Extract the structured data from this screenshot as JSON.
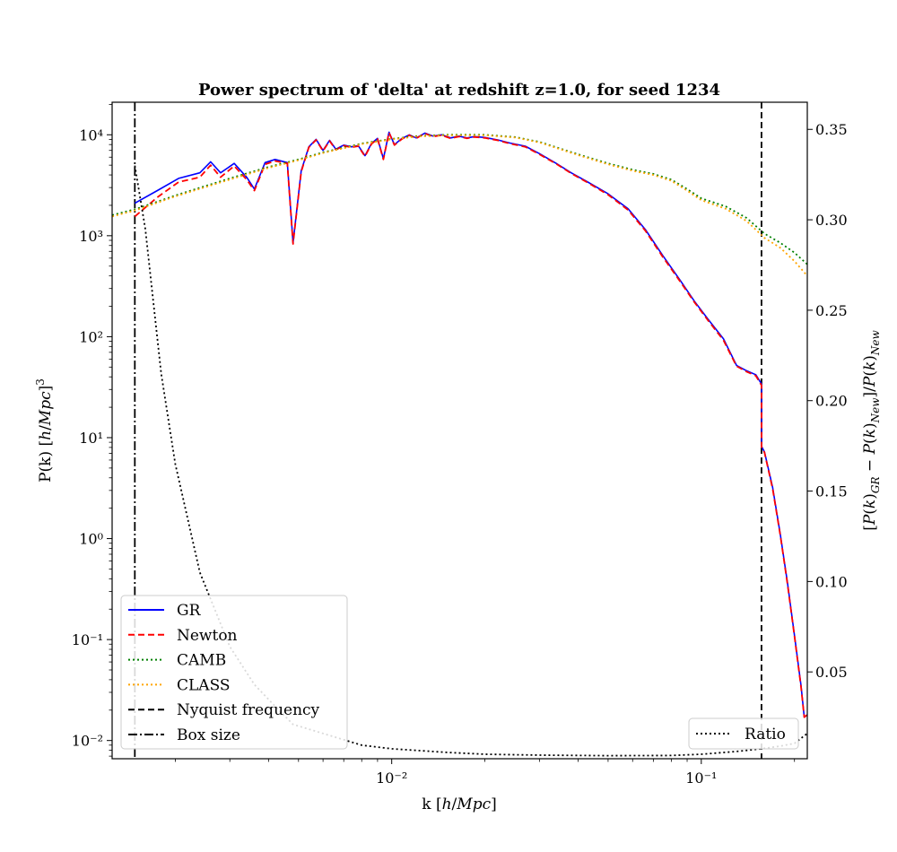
{
  "chart_data": {
    "type": "line",
    "title": "Power spectrum of 'delta' at redshift z=1.0, for seed 1234",
    "xlabel": "k [h/Mpc]",
    "ylabel": "P(k) [h/Mpc]³",
    "ylabel_right": "[P(k)_GR − P(k)_New]/P(k)_New",
    "xscale": "log",
    "yscale": "log",
    "xlim": [
      0.00125,
      0.22
    ],
    "ylim": [
      0.0066,
      21000
    ],
    "ylim_right": [
      0.002,
      0.365
    ],
    "x_ticks": [
      {
        "value": 0.01,
        "label": "10⁻²"
      },
      {
        "value": 0.1,
        "label": "10⁻¹"
      }
    ],
    "y_ticks": [
      {
        "value": 10000,
        "label": "10⁴"
      },
      {
        "value": 1000,
        "label": "10³"
      },
      {
        "value": 100,
        "label": "10²"
      },
      {
        "value": 10,
        "label": "10¹"
      },
      {
        "value": 1,
        "label": "10⁰"
      },
      {
        "value": 0.1,
        "label": "10⁻¹"
      },
      {
        "value": 0.01,
        "label": "10⁻²"
      }
    ],
    "y_right_ticks": [
      {
        "value": 0.35,
        "label": "0.35"
      },
      {
        "value": 0.3,
        "label": "0.30"
      },
      {
        "value": 0.25,
        "label": "0.25"
      },
      {
        "value": 0.2,
        "label": "0.20"
      },
      {
        "value": 0.15,
        "label": "0.15"
      },
      {
        "value": 0.1,
        "label": "0.10"
      },
      {
        "value": 0.05,
        "label": "0.05"
      }
    ],
    "grid": false,
    "legend_left_placement": "lower-left",
    "legend_right_placement": "lower-right",
    "series": [
      {
        "name": "GR",
        "color": "#0000ff",
        "style": "solid",
        "axis": "left",
        "x": [
          0.00148,
          0.00175,
          0.00205,
          0.0024,
          0.0026,
          0.0028,
          0.0031,
          0.0034,
          0.0036,
          0.0039,
          0.0042,
          0.0046,
          0.0048,
          0.0051,
          0.0054,
          0.0057,
          0.006,
          0.0063,
          0.0066,
          0.007,
          0.0074,
          0.0078,
          0.0082,
          0.0086,
          0.009,
          0.0094,
          0.0098,
          0.0102,
          0.0108,
          0.0114,
          0.012,
          0.0128,
          0.0136,
          0.0145,
          0.0155,
          0.0165,
          0.0175,
          0.0185,
          0.02,
          0.022,
          0.024,
          0.027,
          0.03,
          0.034,
          0.038,
          0.043,
          0.05,
          0.058,
          0.066,
          0.075,
          0.085,
          0.095,
          0.105,
          0.118,
          0.13,
          0.14,
          0.15,
          0.1565,
          0.1565,
          0.16,
          0.17,
          0.18,
          0.19,
          0.2,
          0.21,
          0.215,
          0.22
        ],
        "y": [
          2100,
          2800,
          3700,
          4200,
          5400,
          4200,
          5200,
          3800,
          2900,
          5300,
          5700,
          5300,
          850,
          4400,
          7600,
          9000,
          7000,
          8800,
          7200,
          7900,
          7600,
          7800,
          6200,
          8200,
          9200,
          5800,
          10600,
          8000,
          9200,
          10000,
          9300,
          10400,
          9700,
          10000,
          9300,
          9700,
          9300,
          9600,
          9400,
          8900,
          8300,
          7700,
          6500,
          5200,
          4200,
          3400,
          2600,
          1850,
          1150,
          640,
          370,
          225,
          150,
          95,
          52,
          46,
          42,
          34,
          8.2,
          7.2,
          3.2,
          1.1,
          0.36,
          0.11,
          0.035,
          0.017,
          0.018
        ]
      },
      {
        "name": "Newton",
        "color": "#ff0000",
        "style": "dashed",
        "axis": "left",
        "x": [
          0.00148,
          0.00175,
          0.00205,
          0.0024,
          0.0026,
          0.0028,
          0.0031,
          0.0034,
          0.0036,
          0.0039,
          0.0042,
          0.0046,
          0.0048,
          0.0051,
          0.0054,
          0.0057,
          0.006,
          0.0063,
          0.0066,
          0.007,
          0.0074,
          0.0078,
          0.0082,
          0.0086,
          0.009,
          0.0094,
          0.0098,
          0.0102,
          0.0108,
          0.0114,
          0.012,
          0.0128,
          0.0136,
          0.0145,
          0.0155,
          0.0165,
          0.0175,
          0.0185,
          0.02,
          0.022,
          0.024,
          0.027,
          0.03,
          0.034,
          0.038,
          0.043,
          0.05,
          0.058,
          0.066,
          0.075,
          0.085,
          0.095,
          0.105,
          0.118,
          0.13,
          0.14,
          0.15,
          0.1565,
          0.1565,
          0.16,
          0.17,
          0.18,
          0.19,
          0.2,
          0.21,
          0.215,
          0.22
        ],
        "y": [
          1550,
          2400,
          3400,
          3800,
          5000,
          3800,
          4900,
          3600,
          2800,
          5100,
          5500,
          5200,
          830,
          4300,
          7500,
          8900,
          6900,
          8700,
          7100,
          7800,
          7500,
          7700,
          6100,
          8100,
          9100,
          5700,
          10500,
          7900,
          9100,
          9900,
          9200,
          10300,
          9600,
          9900,
          9200,
          9600,
          9200,
          9500,
          9300,
          8800,
          8200,
          7600,
          6400,
          5150,
          4150,
          3350,
          2550,
          1800,
          1120,
          620,
          360,
          220,
          146,
          92,
          51,
          45,
          41,
          33,
          8.1,
          7.1,
          3.1,
          1.08,
          0.35,
          0.108,
          0.034,
          0.017,
          0.018
        ]
      },
      {
        "name": "CAMB",
        "color": "#008000",
        "style": "dotted",
        "axis": "left",
        "x": [
          0.00125,
          0.0015,
          0.002,
          0.003,
          0.004,
          0.005,
          0.006,
          0.008,
          0.01,
          0.012,
          0.015,
          0.02,
          0.025,
          0.03,
          0.04,
          0.05,
          0.06,
          0.07,
          0.08,
          0.09,
          0.1,
          0.12,
          0.14,
          0.16,
          0.18,
          0.2,
          0.22
        ],
        "y": [
          1600,
          1850,
          2500,
          3700,
          4800,
          5700,
          6700,
          8200,
          9100,
          9700,
          10000,
          10000,
          9500,
          8500,
          6400,
          5200,
          4500,
          4100,
          3600,
          2900,
          2350,
          1950,
          1500,
          1050,
          850,
          680,
          520
        ]
      },
      {
        "name": "CLASS",
        "color": "#ffa500",
        "style": "dotted",
        "axis": "left",
        "x": [
          0.00125,
          0.0015,
          0.002,
          0.003,
          0.004,
          0.005,
          0.006,
          0.008,
          0.01,
          0.012,
          0.015,
          0.02,
          0.025,
          0.03,
          0.04,
          0.05,
          0.06,
          0.07,
          0.08,
          0.09,
          0.1,
          0.12,
          0.14,
          0.16,
          0.18,
          0.2,
          0.22
        ],
        "y": [
          1550,
          1800,
          2450,
          3600,
          4700,
          5600,
          6600,
          8100,
          9000,
          9600,
          9900,
          9900,
          9400,
          8400,
          6300,
          5100,
          4400,
          4000,
          3500,
          2800,
          2250,
          1850,
          1400,
          950,
          760,
          560,
          400
        ]
      },
      {
        "name": "Ratio",
        "color": "#000000",
        "style": "dotted",
        "axis": "right",
        "x": [
          0.00148,
          0.0016,
          0.0018,
          0.002,
          0.0024,
          0.003,
          0.0036,
          0.0042,
          0.0048,
          0.006,
          0.008,
          0.01,
          0.015,
          0.02,
          0.03,
          0.05,
          0.08,
          0.1,
          0.13,
          0.1565,
          0.18,
          0.2,
          0.22
        ],
        "y": [
          0.33,
          0.295,
          0.215,
          0.165,
          0.105,
          0.064,
          0.043,
          0.031,
          0.021,
          0.016,
          0.0095,
          0.0075,
          0.0055,
          0.0045,
          0.004,
          0.0037,
          0.0038,
          0.0045,
          0.006,
          0.0075,
          0.009,
          0.0105,
          0.016
        ]
      }
    ],
    "vlines": [
      {
        "name": "Nyquist frequency",
        "x": 0.1565,
        "color": "#000000",
        "style": "dashed"
      },
      {
        "name": "Box size",
        "x": 0.00148,
        "color": "#000000",
        "style": "dashdot"
      }
    ],
    "legend_left": [
      "GR",
      "Newton",
      "CAMB",
      "CLASS",
      "Nyquist frequency",
      "Box size"
    ],
    "legend_right": [
      "Ratio"
    ]
  }
}
